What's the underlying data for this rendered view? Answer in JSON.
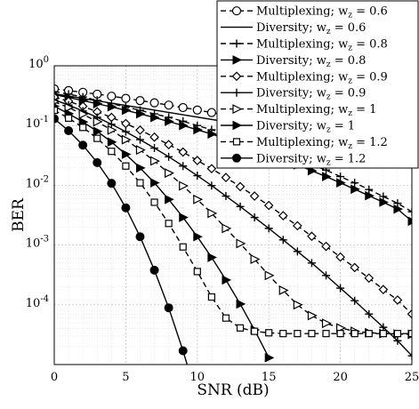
{
  "chart_data": {
    "type": "line",
    "title": "",
    "xlabel": "SNR (dB)",
    "ylabel": "BER",
    "xlim": [
      0,
      25
    ],
    "ylim": [
      1e-05,
      1
    ],
    "yscale": "log",
    "grid": true,
    "legend_position": "top-right",
    "x_ticks": [
      "0",
      "5",
      "10",
      "15",
      "20",
      "25"
    ],
    "y_ticks": [
      {
        "base": "10",
        "exp": "0"
      },
      {
        "base": "10",
        "exp": "-1"
      },
      {
        "base": "10",
        "exp": "-2"
      },
      {
        "base": "10",
        "exp": "-3"
      },
      {
        "base": "10",
        "exp": "-4"
      }
    ],
    "series": [
      {
        "name": "Multiplexing; w",
        "subscript": "z",
        "value": " = 0.6",
        "style": "dashed",
        "marker": "circle-open",
        "x": [
          0,
          1,
          2,
          3,
          4,
          5,
          6,
          7,
          8,
          9,
          10,
          11,
          12,
          13,
          14,
          15,
          16,
          17,
          18,
          19,
          20,
          21,
          22,
          23,
          24,
          25
        ],
        "y": [
          0.41,
          0.385,
          0.36,
          0.335,
          0.31,
          0.285,
          0.262,
          0.24,
          0.22,
          0.2,
          0.182,
          0.165,
          0.15,
          0.136,
          0.123,
          0.111,
          0.1,
          0.09,
          0.081,
          0.073,
          0.066,
          0.06,
          0.054,
          0.049,
          0.045,
          0.042
        ]
      },
      {
        "name": "Diversity; w",
        "subscript": "z",
        "value": " = 0.6",
        "style": "solid",
        "marker": "none",
        "x": [
          0,
          25
        ],
        "y": [
          0.34,
          0.036
        ]
      },
      {
        "name": "Multiplexing; w",
        "subscript": "z",
        "value": " = 0.8",
        "style": "dashed",
        "marker": "plus",
        "x": [
          0,
          1,
          2,
          3,
          4,
          5,
          6,
          7,
          8,
          9,
          10,
          11,
          12,
          13,
          14,
          15,
          16,
          17,
          18,
          19,
          20,
          21,
          22,
          23,
          24,
          25
        ],
        "y": [
          0.37,
          0.335,
          0.3,
          0.265,
          0.233,
          0.205,
          0.18,
          0.157,
          0.137,
          0.118,
          0.1,
          0.085,
          0.072,
          0.06,
          0.05,
          0.042,
          0.034,
          0.028,
          0.022,
          0.018,
          0.014,
          0.011,
          0.0085,
          0.0065,
          0.005,
          0.0036
        ]
      },
      {
        "name": "Diversity; w",
        "subscript": "z",
        "value": " = 0.8",
        "style": "solid",
        "marker": "triangle-right-filled",
        "x": [
          0,
          1,
          2,
          3,
          4,
          5,
          6,
          7,
          8,
          9,
          10,
          11,
          12,
          13,
          14,
          15,
          16,
          17,
          18,
          19,
          20,
          21,
          22,
          23,
          24,
          25
        ],
        "y": [
          0.33,
          0.295,
          0.262,
          0.232,
          0.205,
          0.18,
          0.157,
          0.136,
          0.117,
          0.1,
          0.085,
          0.072,
          0.06,
          0.05,
          0.041,
          0.034,
          0.027,
          0.022,
          0.0175,
          0.014,
          0.011,
          0.0086,
          0.0067,
          0.0052,
          0.004,
          0.0025
        ]
      },
      {
        "name": "Multiplexing; w",
        "subscript": "z",
        "value": " = 0.9",
        "style": "dashed",
        "marker": "diamond-open",
        "x": [
          0,
          1,
          2,
          3,
          4,
          5,
          6,
          7,
          8,
          9,
          10,
          11,
          12,
          13,
          14,
          15,
          16,
          17,
          18,
          19,
          20,
          21,
          22,
          23,
          24,
          25
        ],
        "y": [
          0.3,
          0.255,
          0.21,
          0.17,
          0.137,
          0.108,
          0.084,
          0.064,
          0.048,
          0.036,
          0.026,
          0.019,
          0.0135,
          0.0095,
          0.0066,
          0.0046,
          0.0031,
          0.0021,
          0.0014,
          0.00095,
          0.00063,
          0.00042,
          0.00028,
          0.00018,
          0.00012,
          7e-05
        ]
      },
      {
        "name": "Diversity; w",
        "subscript": "z",
        "value": " = 0.9",
        "style": "solid",
        "marker": "plus",
        "x": [
          0,
          1,
          2,
          3,
          4,
          5,
          6,
          7,
          8,
          9,
          10,
          11,
          12,
          13,
          14,
          15,
          16,
          17,
          18,
          19,
          20,
          21,
          22,
          23,
          24,
          25
        ],
        "y": [
          0.27,
          0.22,
          0.175,
          0.137,
          0.105,
          0.079,
          0.058,
          0.042,
          0.03,
          0.021,
          0.0145,
          0.0099,
          0.0066,
          0.0044,
          0.0029,
          0.0019,
          0.00122,
          0.00078,
          0.0005,
          0.00031,
          0.00019,
          0.000117,
          7e-05,
          4.2e-05,
          2.5e-05,
          1.4e-05
        ]
      },
      {
        "name": "Multiplexing; w",
        "subscript": "z",
        "value": " = 1",
        "style": "dashed",
        "marker": "triangle-right-open",
        "x": [
          0,
          1,
          2,
          3,
          4,
          5,
          6,
          7,
          8,
          9,
          10,
          11,
          12,
          13,
          14,
          15,
          16,
          17,
          18,
          19,
          20,
          21,
          22,
          23,
          24,
          25
        ],
        "y": [
          0.25,
          0.2,
          0.155,
          0.116,
          0.084,
          0.058,
          0.039,
          0.0255,
          0.016,
          0.0098,
          0.0058,
          0.0034,
          0.0019,
          0.00106,
          0.00058,
          0.00031,
          0.000175,
          0.0001,
          6.6e-05,
          4.9e-05,
          4.1e-05,
          3.6e-05,
          3.4e-05,
          3.3e-05,
          3.25e-05,
          3.2e-05
        ]
      },
      {
        "name": "Diversity; w",
        "subscript": "z",
        "value": " = 1",
        "style": "solid",
        "marker": "triangle-right-filled",
        "x": [
          0,
          1,
          2,
          3,
          4,
          5,
          6,
          7,
          8,
          9,
          10,
          11,
          12,
          13,
          14,
          15
        ],
        "y": [
          0.21,
          0.158,
          0.115,
          0.08,
          0.053,
          0.033,
          0.0195,
          0.011,
          0.0058,
          0.0029,
          0.00138,
          0.00062,
          0.00026,
          0.000103,
          3.8e-05,
          1.3e-05
        ]
      },
      {
        "name": "Multiplexing; w",
        "subscript": "z",
        "value": " = 1.2",
        "style": "dashed",
        "marker": "square-open",
        "x": [
          0,
          1,
          2,
          3,
          4,
          5,
          6,
          7,
          8,
          9,
          10,
          11,
          12,
          13,
          14,
          15,
          16,
          17,
          18,
          19,
          20,
          21,
          22,
          23,
          24,
          25
        ],
        "y": [
          0.18,
          0.133,
          0.093,
          0.061,
          0.037,
          0.021,
          0.011,
          0.0052,
          0.0023,
          0.00093,
          0.00036,
          0.000135,
          6e-05,
          4.1e-05,
          3.6e-05,
          3.4e-05,
          3.3e-05,
          3.3e-05,
          3.3e-05,
          3.3e-05,
          3.3e-05,
          3.3e-05,
          3.3e-05,
          3.3e-05,
          3.3e-05,
          3.3e-05
        ]
      },
      {
        "name": "Diversity; w",
        "subscript": "z",
        "value": " = 1.2",
        "style": "solid",
        "marker": "circle-filled",
        "x": [
          0,
          1,
          2,
          3,
          4,
          5,
          6,
          7,
          8,
          9,
          10
        ],
        "y": [
          0.13,
          0.082,
          0.047,
          0.024,
          0.0108,
          0.0042,
          0.00138,
          0.00038,
          8.9e-05,
          1.7e-05,
          2.7e-06
        ]
      }
    ]
  }
}
